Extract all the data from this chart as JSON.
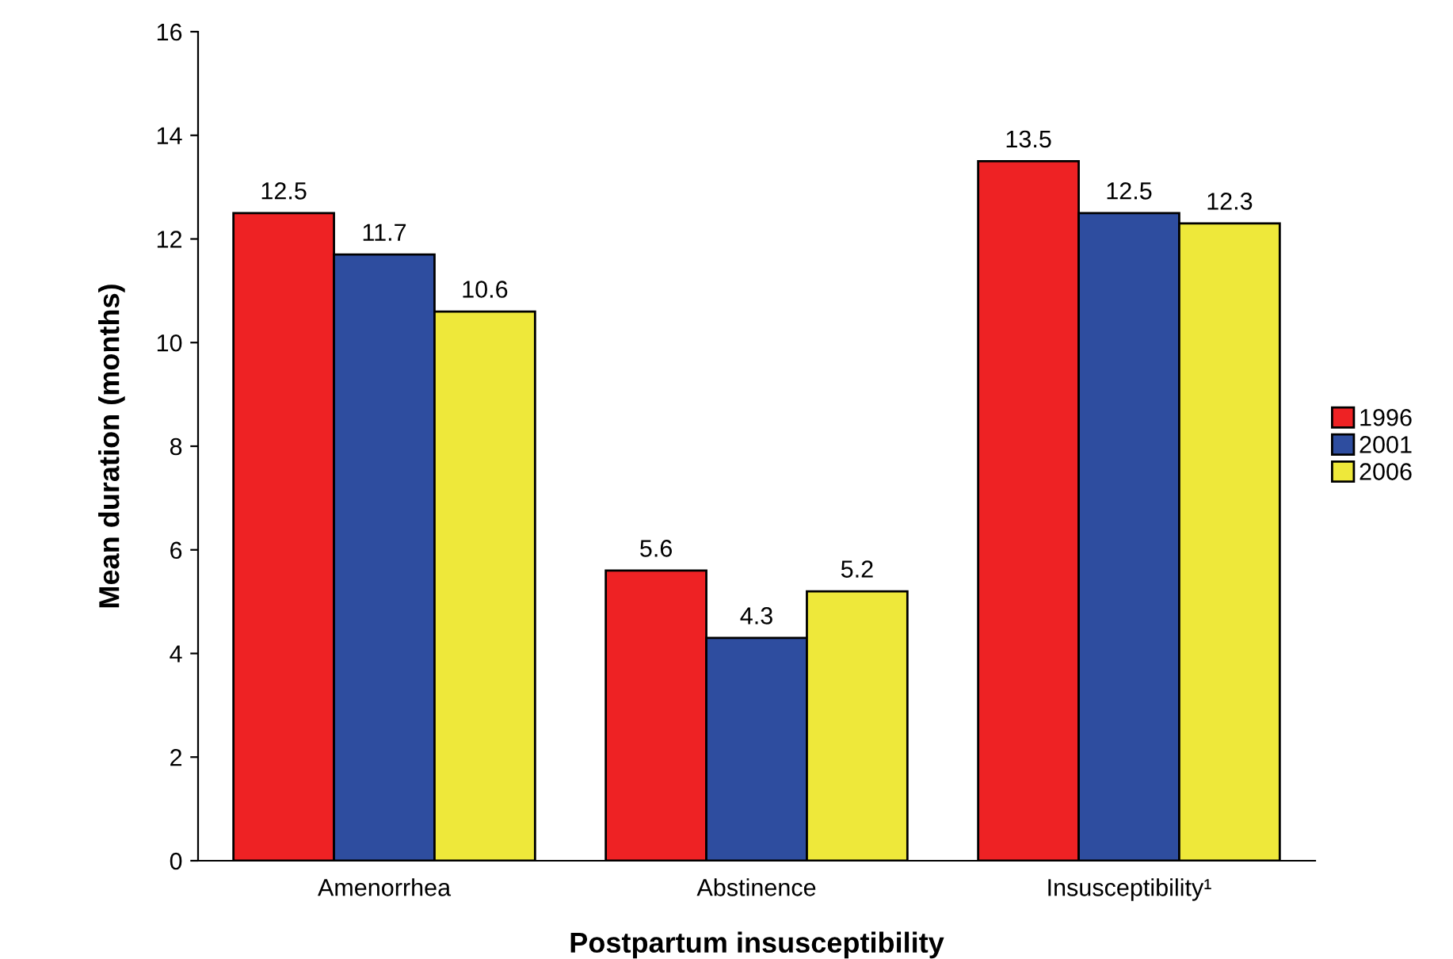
{
  "chart_data": {
    "type": "bar",
    "xlabel": "Postpartum insusceptibility",
    "ylabel": "Mean duration (months)",
    "categories": [
      "Amenorrhea",
      "Abstinence",
      "Insusceptibility¹"
    ],
    "series": [
      {
        "name": "1996",
        "color": "#ee2224",
        "values": [
          12.5,
          5.6,
          13.5
        ]
      },
      {
        "name": "2001",
        "color": "#2e4d9f",
        "values": [
          11.7,
          4.3,
          12.5
        ]
      },
      {
        "name": "2006",
        "color": "#eee83a",
        "values": [
          10.6,
          5.2,
          12.3
        ]
      }
    ],
    "ylim": [
      0,
      16
    ],
    "yticks": [
      0,
      2,
      4,
      6,
      8,
      10,
      12,
      14,
      16
    ],
    "data_labels": true,
    "legend": "right",
    "grid": false
  }
}
